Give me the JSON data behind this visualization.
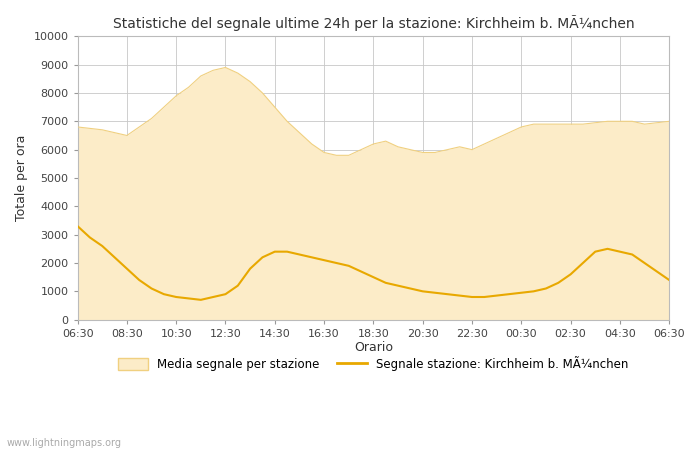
{
  "title": "Statistiche del segnale ultime 24h per la stazione: Kirchheim b. MÃ¼nchen",
  "xlabel": "Orario",
  "ylabel": "Totale per ora",
  "watermark": "www.lightningmaps.org",
  "legend_area": "Media segnale per stazione",
  "legend_line": "Segnale stazione: Kirchheim b. MÃ¼nchen",
  "ylim": [
    0,
    10000
  ],
  "yticks": [
    0,
    1000,
    2000,
    3000,
    4000,
    5000,
    6000,
    7000,
    8000,
    9000,
    10000
  ],
  "xtick_labels": [
    "06:30",
    "08:30",
    "10:30",
    "12:30",
    "14:30",
    "16:30",
    "18:30",
    "20:30",
    "22:30",
    "00:30",
    "02:30",
    "04:30",
    "06:30"
  ],
  "xtick_positions": [
    0,
    2,
    4,
    6,
    8,
    10,
    12,
    14,
    16,
    18,
    20,
    22,
    24
  ],
  "area_color": "#FCECC8",
  "area_edge_color": "#F0D080",
  "line_color": "#E8A800",
  "background_color": "#FFFFFF",
  "grid_color": "#C8C8C8",
  "area_values": [
    6800,
    6750,
    6700,
    6600,
    6500,
    6800,
    7100,
    7500,
    7900,
    8200,
    8600,
    8800,
    8900,
    8700,
    8400,
    8000,
    7500,
    7000,
    6600,
    6200,
    5900,
    5800,
    5800,
    6000,
    6200,
    6300,
    6100,
    6000,
    5900,
    5900,
    6000,
    6100,
    6000,
    6200,
    6400,
    6600,
    6800,
    6900,
    6900,
    6900,
    6900,
    6900,
    6950,
    7000,
    7000,
    7000,
    6900,
    6950,
    7000
  ],
  "line_values": [
    3300,
    2900,
    2600,
    2200,
    1800,
    1400,
    1100,
    900,
    800,
    750,
    700,
    800,
    900,
    1200,
    1800,
    2200,
    2400,
    2400,
    2300,
    2200,
    2100,
    2000,
    1900,
    1700,
    1500,
    1300,
    1200,
    1100,
    1000,
    950,
    900,
    850,
    800,
    800,
    850,
    900,
    950,
    1000,
    1100,
    1300,
    1600,
    2000,
    2400,
    2500,
    2400,
    2300,
    2000,
    1700,
    1400
  ],
  "n_points": 49
}
